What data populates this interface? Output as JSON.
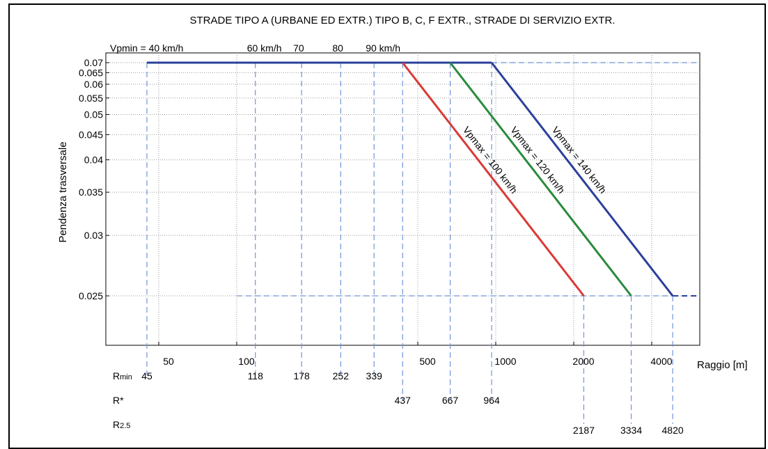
{
  "chart_data": {
    "type": "line",
    "title": "STRADE TIPO A (URBANE ED EXTR.) TIPO B,  C,  F EXTR., STRADE DI SERVIZIO EXTR.",
    "xlabel": "Raggio [m]",
    "ylabel": "Pendenza trasversale",
    "x_scale": "log",
    "y_scale": "reciprocal",
    "xlim": [
      30,
      6000
    ],
    "ylim": [
      0.021,
      0.073
    ],
    "grid": true,
    "x_ticks": [
      50,
      100,
      500,
      1000,
      2000,
      4000
    ],
    "x_tick_labels": [
      "50",
      "100",
      "500",
      "1000",
      "2000",
      "4000"
    ],
    "y_ticks": [
      0.025,
      0.03,
      0.035,
      0.04,
      0.045,
      0.05,
      0.055,
      0.06,
      0.065,
      0.07
    ],
    "y_tick_labels": [
      "0.025",
      "0.03",
      "0.035",
      "0.04",
      "0.045",
      "0.05",
      "0.055",
      "0.06",
      "0.065",
      "0.07"
    ],
    "series": [
      {
        "name": "Vpmin",
        "color": "#2b3f9b",
        "x": [
          45,
          964
        ],
        "y": [
          0.07,
          0.07
        ]
      },
      {
        "name": "Vpmax = 100 km/h",
        "color": "#d93a36",
        "x": [
          437,
          2187
        ],
        "y": [
          0.07,
          0.025
        ]
      },
      {
        "name": "Vpmax = 120 km/h",
        "color": "#2a8a3c",
        "x": [
          667,
          3334
        ],
        "y": [
          0.07,
          0.025
        ]
      },
      {
        "name": "Vpmax = 140 km/h",
        "color": "#2b3f9b",
        "x": [
          964,
          4820
        ],
        "y": [
          0.07,
          0.025
        ]
      }
    ],
    "dashed_line_025": {
      "x": [
        4820,
        6000
      ],
      "y": [
        0.025,
        0.025
      ]
    },
    "guide_color": "#6f95d8",
    "guide_025_from": 100,
    "speed_labels": [
      {
        "text": "Vpmin = 40 km/h",
        "x": 45
      },
      {
        "text": "60 km/h",
        "x": 118
      },
      {
        "text": "70",
        "x": 178
      },
      {
        "text": "80",
        "x": 252
      },
      {
        "text": "90 km/h",
        "x": 339
      }
    ],
    "rows": [
      {
        "label_main": "R",
        "label_sub": "min",
        "values": [
          45,
          118,
          178,
          252,
          339
        ]
      },
      {
        "label_main": "R*",
        "label_sub": "",
        "values": [
          437,
          667,
          964
        ]
      },
      {
        "label_main": "R",
        "label_sub": "2.5",
        "values": [
          2187,
          3334,
          4820
        ]
      }
    ],
    "line_labels": [
      "Vpmax = 100 km/h",
      "Vpmax = 120 km/h",
      "Vpmax = 140 km/h"
    ]
  }
}
